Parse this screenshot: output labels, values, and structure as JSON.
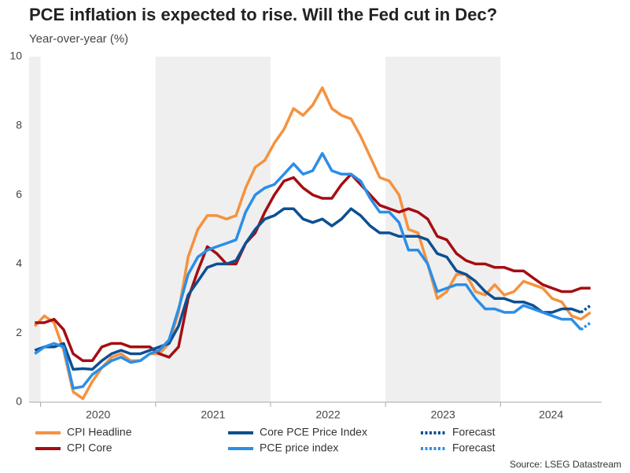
{
  "chart_data": {
    "type": "line",
    "title": "PCE inflation is expected to rise. Will the Fed cut in Dec?",
    "subtitle": "Year-over-year (%)",
    "source": "Source: LSEG Datastream",
    "x": [
      2019.95,
      2020.033,
      2020.117,
      2020.2,
      2020.283,
      2020.367,
      2020.45,
      2020.533,
      2020.617,
      2020.7,
      2020.783,
      2020.867,
      2020.95,
      2021.033,
      2021.117,
      2021.2,
      2021.283,
      2021.367,
      2021.45,
      2021.533,
      2021.617,
      2021.7,
      2021.783,
      2021.867,
      2021.95,
      2022.033,
      2022.117,
      2022.2,
      2022.283,
      2022.367,
      2022.45,
      2022.533,
      2022.617,
      2022.7,
      2022.783,
      2022.867,
      2022.95,
      2023.033,
      2023.117,
      2023.2,
      2023.283,
      2023.367,
      2023.45,
      2023.533,
      2023.617,
      2023.7,
      2023.783,
      2023.867,
      2023.95,
      2024.033,
      2024.117,
      2024.2,
      2024.283,
      2024.367,
      2024.45,
      2024.533,
      2024.617,
      2024.7,
      2024.783
    ],
    "xlim": [
      2019.9,
      2024.88
    ],
    "xticks": [
      2020,
      2021,
      2022,
      2023,
      2024
    ],
    "ylim": [
      0,
      10
    ],
    "yticks": [
      0,
      2,
      4,
      6,
      8,
      10
    ],
    "series": [
      {
        "name": "CPI Headline",
        "color": "#f5923e",
        "dashed": false,
        "values": [
          2.2,
          2.5,
          2.3,
          1.5,
          0.3,
          0.1,
          0.6,
          1.0,
          1.3,
          1.4,
          1.2,
          1.2,
          1.4,
          1.4,
          1.7,
          2.6,
          4.2,
          5.0,
          5.4,
          5.4,
          5.3,
          5.4,
          6.2,
          6.8,
          7.0,
          7.5,
          7.9,
          8.5,
          8.3,
          8.6,
          9.1,
          8.5,
          8.3,
          8.2,
          7.7,
          7.1,
          6.5,
          6.4,
          6.0,
          5.0,
          4.9,
          4.0,
          3.0,
          3.2,
          3.7,
          3.7,
          3.2,
          3.1,
          3.4,
          3.1,
          3.2,
          3.5,
          3.4,
          3.3,
          3.0,
          2.9,
          2.5,
          2.4,
          2.6
        ]
      },
      {
        "name": "CPI Core",
        "color": "#a50d12",
        "dashed": false,
        "values": [
          2.3,
          2.3,
          2.4,
          2.1,
          1.4,
          1.2,
          1.2,
          1.6,
          1.7,
          1.7,
          1.6,
          1.6,
          1.6,
          1.4,
          1.3,
          1.6,
          3.0,
          3.8,
          4.5,
          4.3,
          4.0,
          4.0,
          4.6,
          4.9,
          5.5,
          6.0,
          6.4,
          6.5,
          6.2,
          6.0,
          5.9,
          5.9,
          6.3,
          6.6,
          6.3,
          6.0,
          5.7,
          5.6,
          5.5,
          5.6,
          5.5,
          5.3,
          4.8,
          4.7,
          4.3,
          4.1,
          4.0,
          4.0,
          3.9,
          3.9,
          3.8,
          3.8,
          3.6,
          3.4,
          3.3,
          3.2,
          3.2,
          3.3,
          3.3
        ]
      },
      {
        "name": "Core PCE Price Index",
        "color": "#0d4f92",
        "dashed": false,
        "values": [
          1.5,
          1.6,
          1.6,
          1.7,
          0.95,
          0.97,
          0.95,
          1.2,
          1.4,
          1.5,
          1.4,
          1.4,
          1.5,
          1.6,
          1.7,
          2.2,
          3.1,
          3.5,
          3.9,
          4.0,
          4.0,
          4.1,
          4.6,
          5.0,
          5.3,
          5.4,
          5.6,
          5.6,
          5.3,
          5.2,
          5.3,
          5.1,
          5.3,
          5.6,
          5.4,
          5.1,
          4.9,
          4.9,
          4.8,
          4.8,
          4.8,
          4.7,
          4.3,
          4.2,
          3.8,
          3.7,
          3.5,
          3.2,
          3.0,
          3.0,
          2.9,
          2.9,
          2.8,
          2.6,
          2.6,
          2.7,
          2.7,
          2.6,
          null
        ]
      },
      {
        "name": "PCE price index",
        "color": "#2b8ee8",
        "dashed": false,
        "values": [
          1.4,
          1.6,
          1.7,
          1.6,
          0.4,
          0.45,
          0.8,
          1.0,
          1.2,
          1.3,
          1.15,
          1.2,
          1.4,
          1.5,
          1.8,
          2.7,
          3.7,
          4.2,
          4.4,
          4.5,
          4.6,
          4.7,
          5.5,
          6.0,
          6.2,
          6.3,
          6.6,
          6.9,
          6.6,
          6.7,
          7.2,
          6.7,
          6.6,
          6.6,
          6.4,
          5.9,
          5.5,
          5.5,
          5.2,
          4.4,
          4.4,
          4.0,
          3.2,
          3.3,
          3.4,
          3.4,
          3.0,
          2.7,
          2.7,
          2.6,
          2.6,
          2.8,
          2.7,
          2.6,
          2.5,
          2.4,
          2.4,
          2.1,
          null
        ]
      },
      {
        "name": "Forecast",
        "color": "#0d4f92",
        "dashed": true,
        "values": [
          null,
          null,
          null,
          null,
          null,
          null,
          null,
          null,
          null,
          null,
          null,
          null,
          null,
          null,
          null,
          null,
          null,
          null,
          null,
          null,
          null,
          null,
          null,
          null,
          null,
          null,
          null,
          null,
          null,
          null,
          null,
          null,
          null,
          null,
          null,
          null,
          null,
          null,
          null,
          null,
          null,
          null,
          null,
          null,
          null,
          null,
          null,
          null,
          null,
          null,
          null,
          null,
          null,
          null,
          null,
          null,
          null,
          2.6,
          2.8
        ]
      },
      {
        "name": "Forecast",
        "color": "#2b8ee8",
        "dashed": true,
        "values": [
          null,
          null,
          null,
          null,
          null,
          null,
          null,
          null,
          null,
          null,
          null,
          null,
          null,
          null,
          null,
          null,
          null,
          null,
          null,
          null,
          null,
          null,
          null,
          null,
          null,
          null,
          null,
          null,
          null,
          null,
          null,
          null,
          null,
          null,
          null,
          null,
          null,
          null,
          null,
          null,
          null,
          null,
          null,
          null,
          null,
          null,
          null,
          null,
          null,
          null,
          null,
          null,
          null,
          null,
          null,
          null,
          null,
          2.1,
          2.3
        ]
      }
    ]
  }
}
